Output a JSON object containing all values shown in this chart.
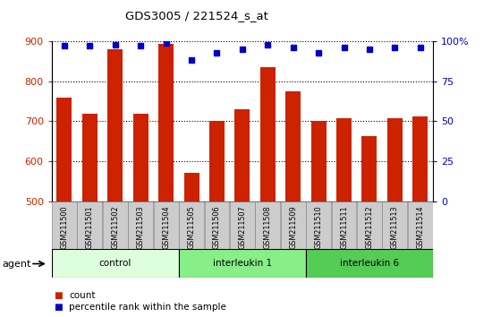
{
  "title": "GDS3005 / 221524_s_at",
  "samples": [
    "GSM211500",
    "GSM211501",
    "GSM211502",
    "GSM211503",
    "GSM211504",
    "GSM211505",
    "GSM211506",
    "GSM211507",
    "GSM211508",
    "GSM211509",
    "GSM211510",
    "GSM211511",
    "GSM211512",
    "GSM211513",
    "GSM211514"
  ],
  "counts": [
    760,
    718,
    880,
    718,
    893,
    572,
    700,
    730,
    835,
    775,
    700,
    707,
    662,
    707,
    712
  ],
  "percentile_ranks": [
    97,
    97,
    98,
    97,
    99,
    88,
    93,
    95,
    98,
    96,
    93,
    96,
    95,
    96,
    96
  ],
  "groups": [
    {
      "label": "control",
      "start": 0,
      "end": 4,
      "color": "#ddffdd"
    },
    {
      "label": "interleukin 1",
      "start": 5,
      "end": 9,
      "color": "#88ee88"
    },
    {
      "label": "interleukin 6",
      "start": 10,
      "end": 14,
      "color": "#55cc55"
    }
  ],
  "bar_color": "#cc2200",
  "dot_color": "#0000cc",
  "ylim_left": [
    500,
    900
  ],
  "ylim_right": [
    0,
    100
  ],
  "yticks_left": [
    500,
    600,
    700,
    800,
    900
  ],
  "yticks_right": [
    0,
    25,
    50,
    75,
    100
  ],
  "bar_width": 0.6,
  "agent_label": "agent",
  "legend_count_label": "count",
  "legend_pct_label": "percentile rank within the sample",
  "sample_bg_color": "#cccccc",
  "fig_width": 5.5,
  "fig_height": 3.54,
  "dpi": 100
}
